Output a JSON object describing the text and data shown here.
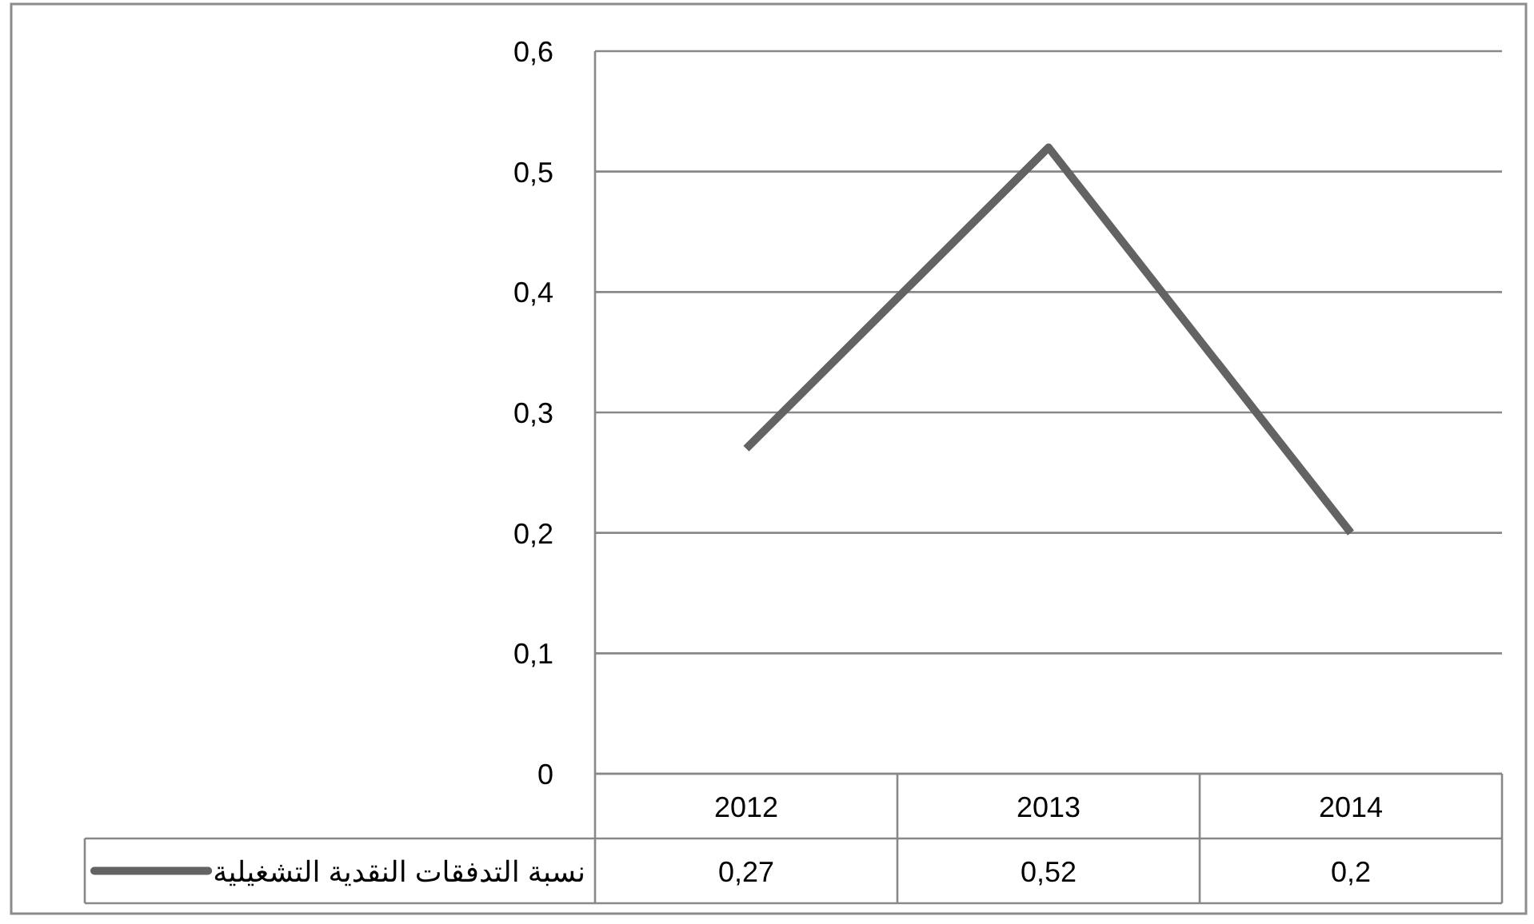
{
  "chart_data": {
    "type": "line",
    "categories": [
      "2012",
      "2013",
      "2014"
    ],
    "series": [
      {
        "name": "نسبة التدفقات النقدية التشغيلية",
        "color": "#636363",
        "values": [
          0.27,
          0.52,
          0.2
        ],
        "value_labels": [
          "0,27",
          "0,52",
          "0,2"
        ]
      }
    ],
    "ylim": [
      0,
      0.6
    ],
    "yticks": [
      0,
      {
        "value": 0.1,
        "label": "0,1"
      },
      {
        "value": 0.2,
        "label": "0,2"
      },
      {
        "value": 0.3,
        "label": "0,3"
      },
      {
        "value": 0.4,
        "label": "0,4"
      },
      {
        "value": 0.5,
        "label": "0,5"
      },
      {
        "value": 0.6,
        "label": "0,6"
      }
    ],
    "grid": "y",
    "legend": "bottom left",
    "line_style": "solid"
  }
}
